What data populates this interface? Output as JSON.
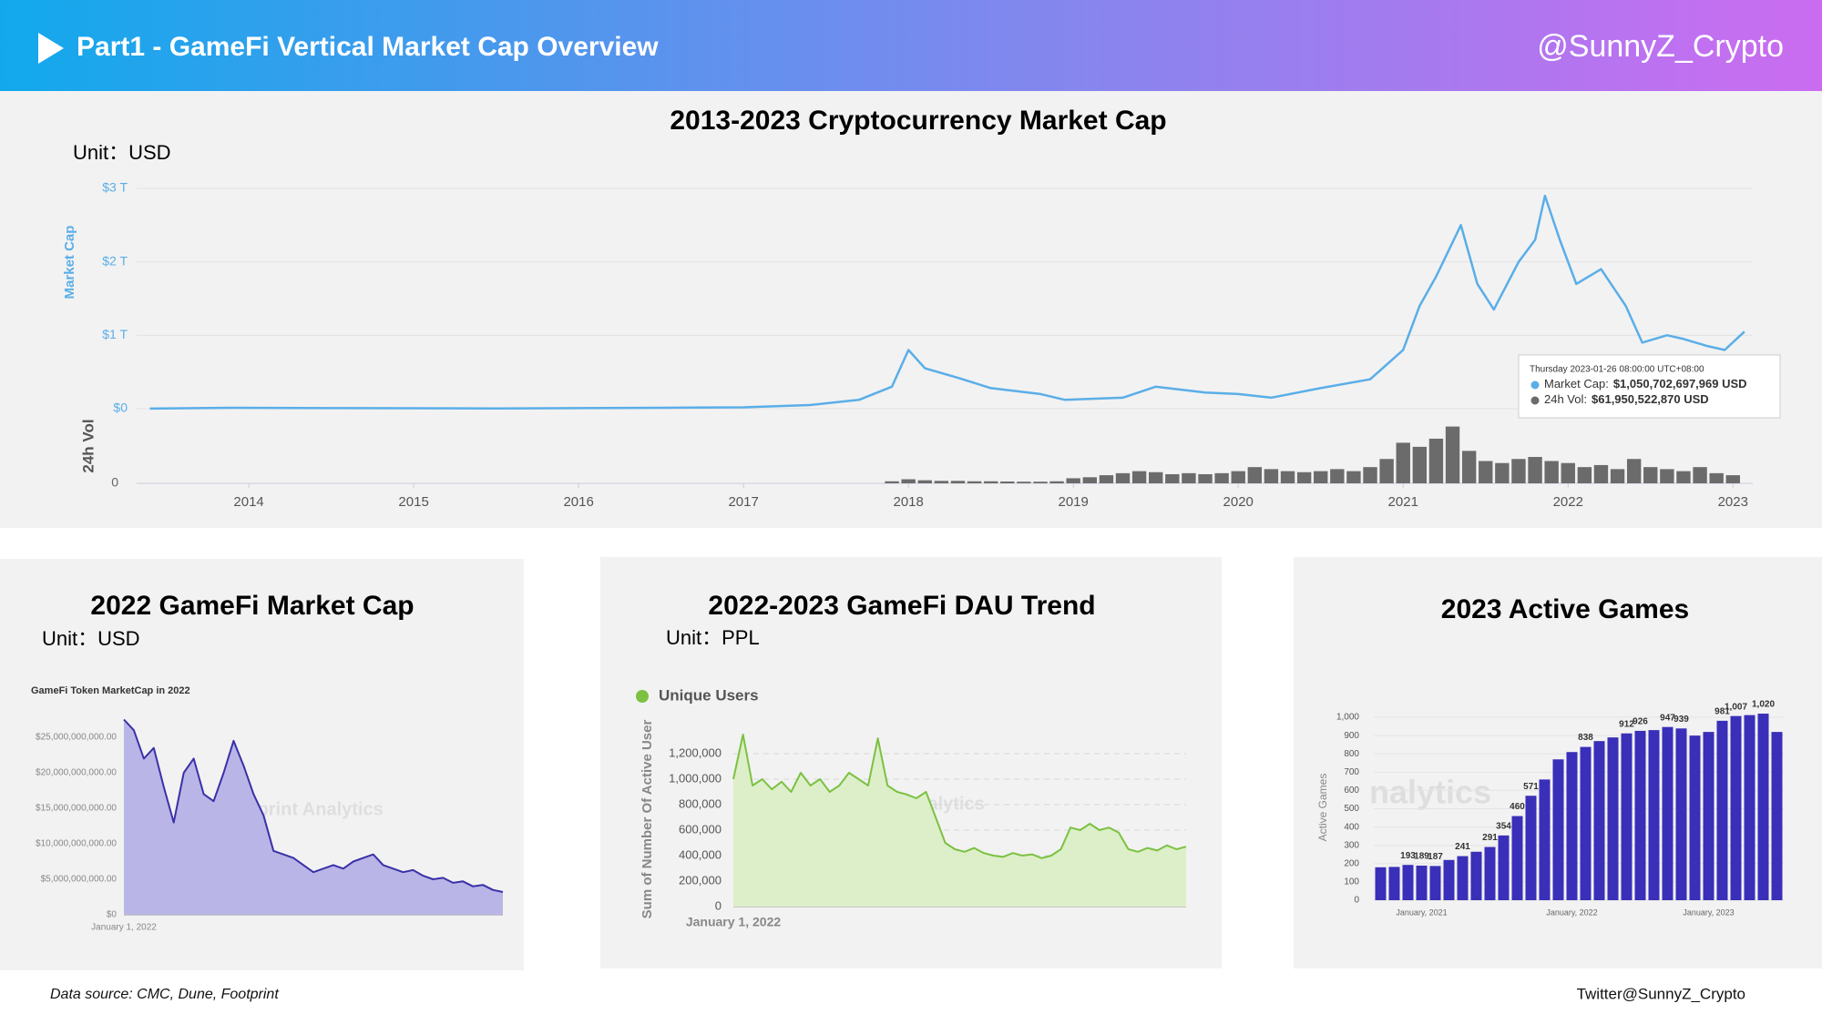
{
  "header": {
    "title": "Part1 - GameFi Vertical Market Cap Overview",
    "handle": "@SunnyZ_Crypto"
  },
  "footer": {
    "source": "Data source: CMC, Dune, Footprint",
    "credit": "Twitter@SunnyZ_Crypto"
  },
  "chart_data": [
    {
      "type": "line",
      "title": "2013-2023 Cryptocurrency Market Cap",
      "unit": "Unit：USD",
      "series": [
        {
          "name": "Market Cap",
          "color": "#5aaee8",
          "x": [
            2013.4,
            2013.9,
            2014.5,
            2015.5,
            2016.5,
            2017.0,
            2017.4,
            2017.7,
            2017.9,
            2018.0,
            2018.1,
            2018.3,
            2018.5,
            2018.8,
            2018.95,
            2019.3,
            2019.5,
            2019.8,
            2020.0,
            2020.2,
            2020.5,
            2020.8,
            2021.0,
            2021.1,
            2021.2,
            2021.35,
            2021.45,
            2021.55,
            2021.7,
            2021.8,
            2021.86,
            2021.95,
            2022.05,
            2022.2,
            2022.35,
            2022.45,
            2022.6,
            2022.7,
            2022.85,
            2022.95,
            2023.07
          ],
          "values": [
            0.001,
            0.012,
            0.008,
            0.004,
            0.012,
            0.018,
            0.05,
            0.12,
            0.3,
            0.8,
            0.55,
            0.42,
            0.28,
            0.2,
            0.12,
            0.15,
            0.3,
            0.22,
            0.2,
            0.15,
            0.28,
            0.4,
            0.8,
            1.4,
            1.8,
            2.5,
            1.7,
            1.35,
            2.0,
            2.3,
            2.9,
            2.3,
            1.7,
            1.9,
            1.4,
            0.9,
            1.0,
            0.95,
            0.85,
            0.8,
            1.05
          ]
        },
        {
          "name": "24h Vol",
          "color": "#6b6b6b",
          "type": "bar",
          "axis": "y2",
          "x": [
            2017.9,
            2018.0,
            2018.1,
            2018.2,
            2018.3,
            2018.4,
            2018.5,
            2018.6,
            2018.7,
            2018.8,
            2018.9,
            2019.0,
            2019.1,
            2019.2,
            2019.3,
            2019.4,
            2019.5,
            2019.6,
            2019.7,
            2019.8,
            2019.9,
            2020.0,
            2020.1,
            2020.2,
            2020.3,
            2020.4,
            2020.5,
            2020.6,
            2020.7,
            2020.8,
            2020.9,
            2021.0,
            2021.1,
            2021.2,
            2021.3,
            2021.4,
            2021.5,
            2021.6,
            2021.7,
            2021.8,
            2021.9,
            2022.0,
            2022.1,
            2022.2,
            2022.3,
            2022.4,
            2022.5,
            2022.6,
            2022.7,
            2022.8,
            2022.9,
            2023.0
          ],
          "values": [
            10,
            20,
            15,
            12,
            12,
            10,
            10,
            9,
            8,
            8,
            10,
            25,
            30,
            40,
            50,
            60,
            55,
            45,
            50,
            45,
            50,
            60,
            80,
            70,
            60,
            55,
            60,
            70,
            60,
            80,
            120,
            200,
            180,
            220,
            280,
            160,
            110,
            100,
            120,
            130,
            110,
            100,
            80,
            90,
            70,
            120,
            80,
            70,
            60,
            80,
            50,
            40
          ]
        }
      ],
      "xlim": [
        2013.32,
        2023.12
      ],
      "xticks": [
        2014,
        2015,
        2016,
        2017,
        2018,
        2019,
        2020,
        2021,
        2022,
        2023
      ],
      "ylim": [
        0,
        3
      ],
      "yticks": [
        {
          "value": 0,
          "label": "$0"
        },
        {
          "value": 1,
          "label": "$1 T"
        },
        {
          "value": 2,
          "label": "$2 T"
        },
        {
          "value": 3,
          "label": "$3 T"
        }
      ],
      "y2lim": [
        0,
        350
      ],
      "y2ticks": [
        0
      ],
      "grid": true,
      "tooltip": {
        "date": "Thursday 2023-01-26 08:00:00 UTC+08:00",
        "items": [
          {
            "label": "Market Cap:",
            "value": "$1,050,702,697,969 USD",
            "color": "#5aaee8"
          },
          {
            "label": "24h Vol:",
            "value": "$61,950,522,870 USD",
            "color": "#6b6b6b"
          }
        ]
      }
    },
    {
      "type": "line",
      "title": "2022 GameFi Market Cap",
      "unit": "Unit：USD",
      "subtitle": "GameFi Token MarketCap in 2022",
      "watermark": "Footprint Analytics",
      "area": true,
      "fill": "#b9b5e6",
      "categories": [
        "January 1, 2022",
        null,
        null,
        null,
        null,
        null,
        null,
        null,
        null,
        null,
        null,
        null,
        null,
        null,
        null,
        null,
        null,
        null,
        null,
        null,
        null,
        null,
        null,
        null,
        null,
        null,
        null,
        null,
        null,
        null,
        null,
        null,
        null,
        null,
        null,
        null,
        null,
        null,
        null
      ],
      "series": [
        {
          "name": "GameFi Token MarketCap",
          "color": "#3a31a8",
          "values": [
            27500000000,
            26000000000,
            22000000000,
            23500000000,
            18000000000,
            13000000000,
            20000000000,
            22000000000,
            17000000000,
            16000000000,
            20000000000,
            24500000000,
            21000000000,
            17000000000,
            14000000000,
            9000000000,
            8500000000,
            8000000000,
            7000000000,
            6000000000,
            6500000000,
            7000000000,
            6500000000,
            7500000000,
            8000000000,
            8500000000,
            7000000000,
            6500000000,
            6000000000,
            6300000000,
            5500000000,
            5000000000,
            5200000000,
            4500000000,
            4700000000,
            4000000000,
            4200000000,
            3500000000,
            3200000000
          ]
        }
      ],
      "ylim": [
        0,
        28000000000
      ],
      "yticks": [
        {
          "value": 0,
          "label": "$0"
        },
        {
          "value": 5000000000,
          "label": "$5,000,000,000.00"
        },
        {
          "value": 10000000000,
          "label": "$10,000,000,000.00"
        },
        {
          "value": 15000000000,
          "label": "$15,000,000,000.00"
        },
        {
          "value": 20000000000,
          "label": "$20,000,000,000.00"
        },
        {
          "value": 25000000000,
          "label": "$25,000,000,000.00"
        }
      ],
      "grid": false
    },
    {
      "type": "line",
      "title": "2022-2023 GameFi DAU Trend",
      "unit": "Unit：PPL",
      "ylabel": "Sum of Number Of Active User",
      "watermark": "Footprint Analytics",
      "area": true,
      "fill": "#dcefc9",
      "legend": "top-left",
      "categories": [
        "January 1, 2022",
        null,
        null,
        null,
        null,
        null,
        null,
        null,
        null,
        null,
        null,
        null,
        null,
        null,
        null,
        null,
        null,
        null,
        null,
        null,
        null,
        null,
        null,
        null,
        null,
        null,
        null,
        null,
        null,
        null,
        null,
        null,
        null,
        null,
        null,
        null,
        null,
        null,
        null,
        null,
        null,
        null,
        null,
        null,
        null,
        null,
        null,
        null
      ],
      "series": [
        {
          "name": "Unique Users",
          "color": "#7cc142",
          "values": [
            1000000,
            1350000,
            950000,
            1000000,
            920000,
            980000,
            900000,
            1050000,
            950000,
            1000000,
            900000,
            950000,
            1050000,
            1000000,
            950000,
            1320000,
            950000,
            900000,
            880000,
            850000,
            900000,
            700000,
            500000,
            450000,
            430000,
            460000,
            420000,
            400000,
            390000,
            420000,
            400000,
            410000,
            380000,
            400000,
            450000,
            620000,
            600000,
            650000,
            600000,
            620000,
            580000,
            450000,
            430000,
            460000,
            440000,
            480000,
            450000,
            470000
          ]
        }
      ],
      "ylim": [
        0,
        1400000
      ],
      "yticks": [
        0,
        {
          "value": 200000,
          "label": "200,000"
        },
        {
          "value": 400000,
          "label": "400,000"
        },
        {
          "value": 600000,
          "label": "600,000"
        },
        {
          "value": 800000,
          "label": "800,000"
        },
        {
          "value": 1000000,
          "label": "1,000,000"
        },
        {
          "value": 1200000,
          "label": "1,200,000"
        }
      ],
      "grid": true
    },
    {
      "type": "bar",
      "title": "2023 Active Games",
      "ylabel": "Active Games",
      "watermark": "nalytics",
      "color": "#3a2fb8",
      "categories": [
        null,
        null,
        null,
        "January, 2021",
        null,
        null,
        null,
        null,
        null,
        null,
        null,
        null,
        null,
        null,
        "January, 2022",
        null,
        null,
        null,
        null,
        null,
        null,
        null,
        null,
        null,
        "January, 2023",
        null,
        null,
        null,
        null,
        null
      ],
      "values": [
        180,
        182,
        193,
        189,
        187,
        220,
        241,
        265,
        291,
        354,
        460,
        571,
        660,
        770,
        810,
        838,
        870,
        890,
        912,
        926,
        930,
        947,
        939,
        900,
        920,
        981,
        1007,
        1012,
        1020,
        920
      ],
      "value_labels": [
        null,
        null,
        "193",
        "189",
        "187",
        null,
        "241",
        null,
        "291",
        "354",
        "460",
        "571",
        null,
        null,
        null,
        "838",
        null,
        null,
        "912",
        "926",
        null,
        "947",
        "939",
        null,
        null,
        "981",
        "1,007",
        null,
        "1,020",
        null
      ],
      "ylim": [
        0,
        1050
      ],
      "yticks": [
        0,
        100,
        200,
        300,
        400,
        500,
        600,
        700,
        800,
        900,
        {
          "value": 1000,
          "label": "1,000"
        }
      ],
      "grid": true
    }
  ]
}
